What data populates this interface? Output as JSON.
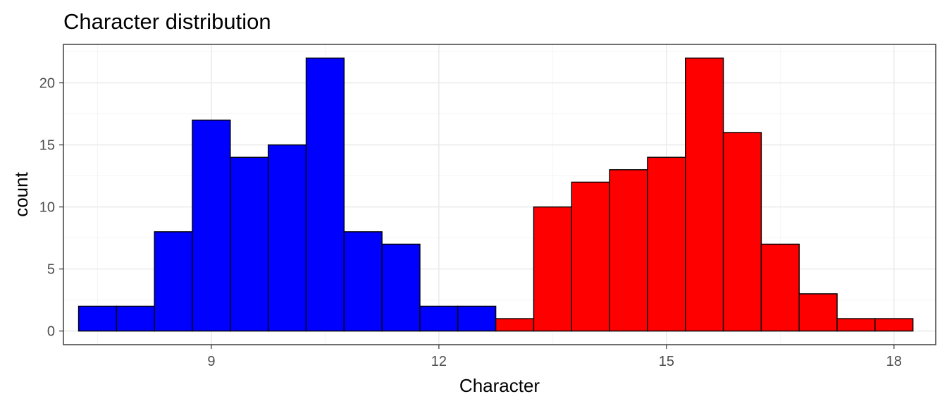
{
  "chart_data": {
    "type": "bar",
    "title": "Character distribution",
    "xlabel": "Character",
    "ylabel": "count",
    "xlim": [
      7.05,
      18.55
    ],
    "ylim": [
      -1.1,
      23.1
    ],
    "x_ticks": [
      9,
      12,
      15,
      18
    ],
    "y_ticks": [
      0,
      5,
      10,
      15,
      20
    ],
    "grid": true,
    "legend": "none",
    "bin_width": 0.5,
    "series": [
      {
        "color": "#0000ff",
        "bins": [
          {
            "x0": 7.25,
            "x1": 7.75,
            "count": 2
          },
          {
            "x0": 7.75,
            "x1": 8.25,
            "count": 2
          },
          {
            "x0": 8.25,
            "x1": 8.75,
            "count": 8
          },
          {
            "x0": 8.75,
            "x1": 9.25,
            "count": 17
          },
          {
            "x0": 9.25,
            "x1": 9.75,
            "count": 14
          },
          {
            "x0": 9.75,
            "x1": 10.25,
            "count": 15
          },
          {
            "x0": 10.25,
            "x1": 10.75,
            "count": 22
          },
          {
            "x0": 10.75,
            "x1": 11.25,
            "count": 8
          },
          {
            "x0": 11.25,
            "x1": 11.75,
            "count": 7
          },
          {
            "x0": 11.75,
            "x1": 12.25,
            "count": 2
          },
          {
            "x0": 12.25,
            "x1": 12.75,
            "count": 2
          }
        ]
      },
      {
        "color": "#ff0000",
        "bins": [
          {
            "x0": 12.75,
            "x1": 13.25,
            "count": 1
          },
          {
            "x0": 13.25,
            "x1": 13.75,
            "count": 10
          },
          {
            "x0": 13.75,
            "x1": 14.25,
            "count": 12
          },
          {
            "x0": 14.25,
            "x1": 14.75,
            "count": 13
          },
          {
            "x0": 14.75,
            "x1": 15.25,
            "count": 14
          },
          {
            "x0": 15.25,
            "x1": 15.75,
            "count": 22
          },
          {
            "x0": 15.75,
            "x1": 16.25,
            "count": 16
          },
          {
            "x0": 16.25,
            "x1": 16.75,
            "count": 7
          },
          {
            "x0": 16.75,
            "x1": 17.25,
            "count": 3
          },
          {
            "x0": 17.25,
            "x1": 17.75,
            "count": 1
          },
          {
            "x0": 17.75,
            "x1": 18.25,
            "count": 1
          }
        ]
      }
    ]
  }
}
